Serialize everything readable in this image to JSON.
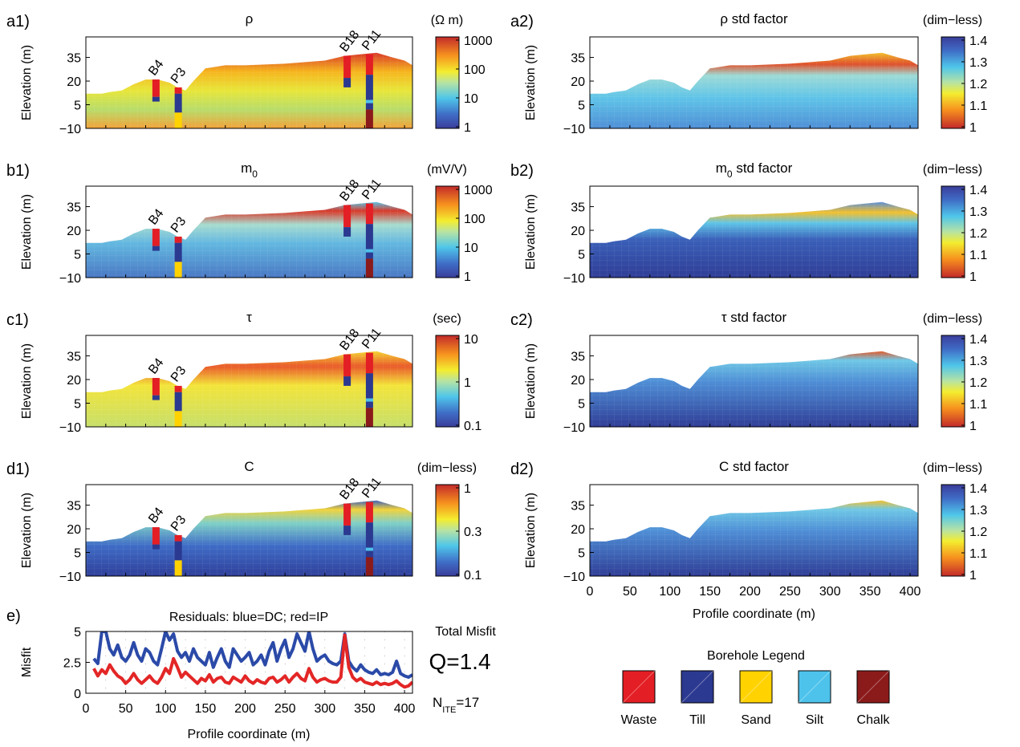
{
  "colors": {
    "waste": "#e31e24",
    "till": "#2b3990",
    "sand": "#ffd200",
    "silt": "#4dc3ec",
    "chalk": "#8b1a1a"
  },
  "x_axis": {
    "ticks": [
      "0",
      "50",
      "100",
      "150",
      "200",
      "250",
      "300",
      "350",
      "400"
    ],
    "label": "Profile coordinate (m)"
  },
  "section_y_ticks": [
    "35",
    "20",
    "5",
    "−10"
  ],
  "section_y_label": "Elevation (m)",
  "boreholes": [
    "B4",
    "P3",
    "B18",
    "P11"
  ],
  "panels": [
    {
      "id": "a1)",
      "title": "ρ",
      "unit": "(Ω m)",
      "scale": [
        "1000",
        "100",
        "10",
        "1"
      ],
      "cmap": "jet"
    },
    {
      "id": "b1)",
      "title": "m",
      "title_sub": "0",
      "unit": "(mV/V)",
      "scale": [
        "1000",
        "100",
        "10",
        "1"
      ],
      "cmap": "jet"
    },
    {
      "id": "c1)",
      "title": "τ",
      "unit": "(sec)",
      "scale": [
        "10",
        "1",
        "0.1"
      ],
      "cmap": "jet"
    },
    {
      "id": "d1)",
      "title": "C",
      "unit": "(dim−less)",
      "scale": [
        "1",
        "0.3",
        "0.1"
      ],
      "cmap": "jet"
    },
    {
      "id": "a2)",
      "title": "ρ std factor",
      "unit": "(dim−less)",
      "scale": [
        "1.4",
        "1.3",
        "1.2",
        "1.1",
        "1"
      ],
      "cmap": "jet_r"
    },
    {
      "id": "b2)",
      "title": "m",
      "title_sub": "0",
      "title_rest": " std factor",
      "unit": "(dim−less)",
      "scale": [
        "1.4",
        "1.3",
        "1.2",
        "1.1",
        "1"
      ],
      "cmap": "jet_r"
    },
    {
      "id": "c2)",
      "title": "τ std factor",
      "unit": "(dim−less)",
      "scale": [
        "1.4",
        "1.3",
        "1.2",
        "1.1",
        "1"
      ],
      "cmap": "jet_r"
    },
    {
      "id": "d2)",
      "title": "C std factor",
      "unit": "(dim−less)",
      "scale": [
        "1.4",
        "1.3",
        "1.2",
        "1.1",
        "1"
      ],
      "cmap": "jet_r"
    }
  ],
  "residuals": {
    "id": "e)",
    "title": "Residuals: blue=DC; red=IP",
    "ylabel": "Misfit",
    "y_ticks": [
      "5",
      "2.5",
      "0"
    ],
    "total_misfit_label": "Total Misfit",
    "q_label": "Q=1.4",
    "n_ite_main": "N",
    "n_ite_sub": "ITE",
    "n_ite_value": "=17"
  },
  "legend": {
    "title": "Borehole Legend",
    "items": [
      "Waste",
      "Till",
      "Sand",
      "Silt",
      "Chalk"
    ]
  },
  "chart_data": {
    "type": "line",
    "title": "Residuals: blue=DC; red=IP",
    "xlabel": "Profile coordinate (m)",
    "ylabel": "Misfit",
    "xlim": [
      0,
      410
    ],
    "ylim": [
      0,
      5
    ],
    "x": [
      10,
      15,
      20,
      25,
      30,
      35,
      40,
      45,
      50,
      55,
      60,
      65,
      70,
      75,
      80,
      85,
      90,
      95,
      100,
      105,
      110,
      115,
      120,
      125,
      130,
      135,
      140,
      145,
      150,
      155,
      160,
      165,
      170,
      175,
      180,
      185,
      190,
      195,
      200,
      205,
      210,
      215,
      220,
      225,
      230,
      235,
      240,
      245,
      250,
      255,
      260,
      265,
      270,
      275,
      280,
      285,
      290,
      295,
      300,
      305,
      310,
      315,
      320,
      325,
      330,
      335,
      340,
      345,
      350,
      355,
      360,
      365,
      370,
      375,
      380,
      385,
      390,
      395,
      400,
      405,
      410
    ],
    "series": [
      {
        "name": "DC",
        "color": "#2b4aa8",
        "values": [
          2.8,
          2.4,
          5,
          5,
          3.6,
          3.1,
          3.9,
          2.9,
          2.6,
          3.1,
          4.1,
          3.1,
          2.6,
          3.6,
          3.3,
          2.6,
          2.3,
          3.6,
          5,
          4.3,
          4.8,
          3.4,
          2.9,
          3.3,
          2.6,
          3.6,
          2.9,
          2.6,
          2.3,
          3.3,
          2.1,
          2.9,
          3.6,
          2.6,
          2.1,
          3.6,
          3.1,
          2.6,
          2.9,
          3.3,
          2.3,
          2.6,
          3.1,
          2.3,
          3.4,
          4.1,
          2.6,
          3.6,
          4.3,
          2.9,
          3.6,
          4.8,
          4.1,
          3.4,
          5,
          3.6,
          2.6,
          2.9,
          3.1,
          2.6,
          2.4,
          2.3,
          2.6,
          4.8,
          2.6,
          2.1,
          1.8,
          2.3,
          1.9,
          1.7,
          1.6,
          1.9,
          1.5,
          1.6,
          1.5,
          1.7,
          2.6,
          1.6,
          1.4,
          1.3,
          1.5
        ]
      },
      {
        "name": "IP",
        "color": "#e32626",
        "values": [
          2,
          1.4,
          1.9,
          1.6,
          2.3,
          1.8,
          1.4,
          1.2,
          0.8,
          1.1,
          1.6,
          1.1,
          0.8,
          1.1,
          1.4,
          1,
          0.8,
          1.3,
          2,
          1.6,
          2.8,
          2.1,
          1.3,
          1.7,
          1.4,
          1.1,
          0.8,
          1.2,
          1,
          1.5,
          0.9,
          1.2,
          1.3,
          0.9,
          0.8,
          1.3,
          1.1,
          0.9,
          1.4,
          1,
          0.8,
          1.1,
          0.9,
          0.8,
          1.2,
          1.3,
          0.9,
          1.1,
          1.4,
          0.9,
          1.3,
          1.6,
          1.2,
          1,
          2,
          1.3,
          0.9,
          1.1,
          1.2,
          1,
          0.9,
          0.9,
          1.3,
          4.7,
          2.1,
          1.3,
          1,
          1.2,
          0.9,
          0.8,
          0.7,
          0.9,
          0.7,
          0.8,
          0.7,
          0.8,
          1,
          0.7,
          0.5,
          0.6,
          0.9
        ]
      }
    ]
  }
}
